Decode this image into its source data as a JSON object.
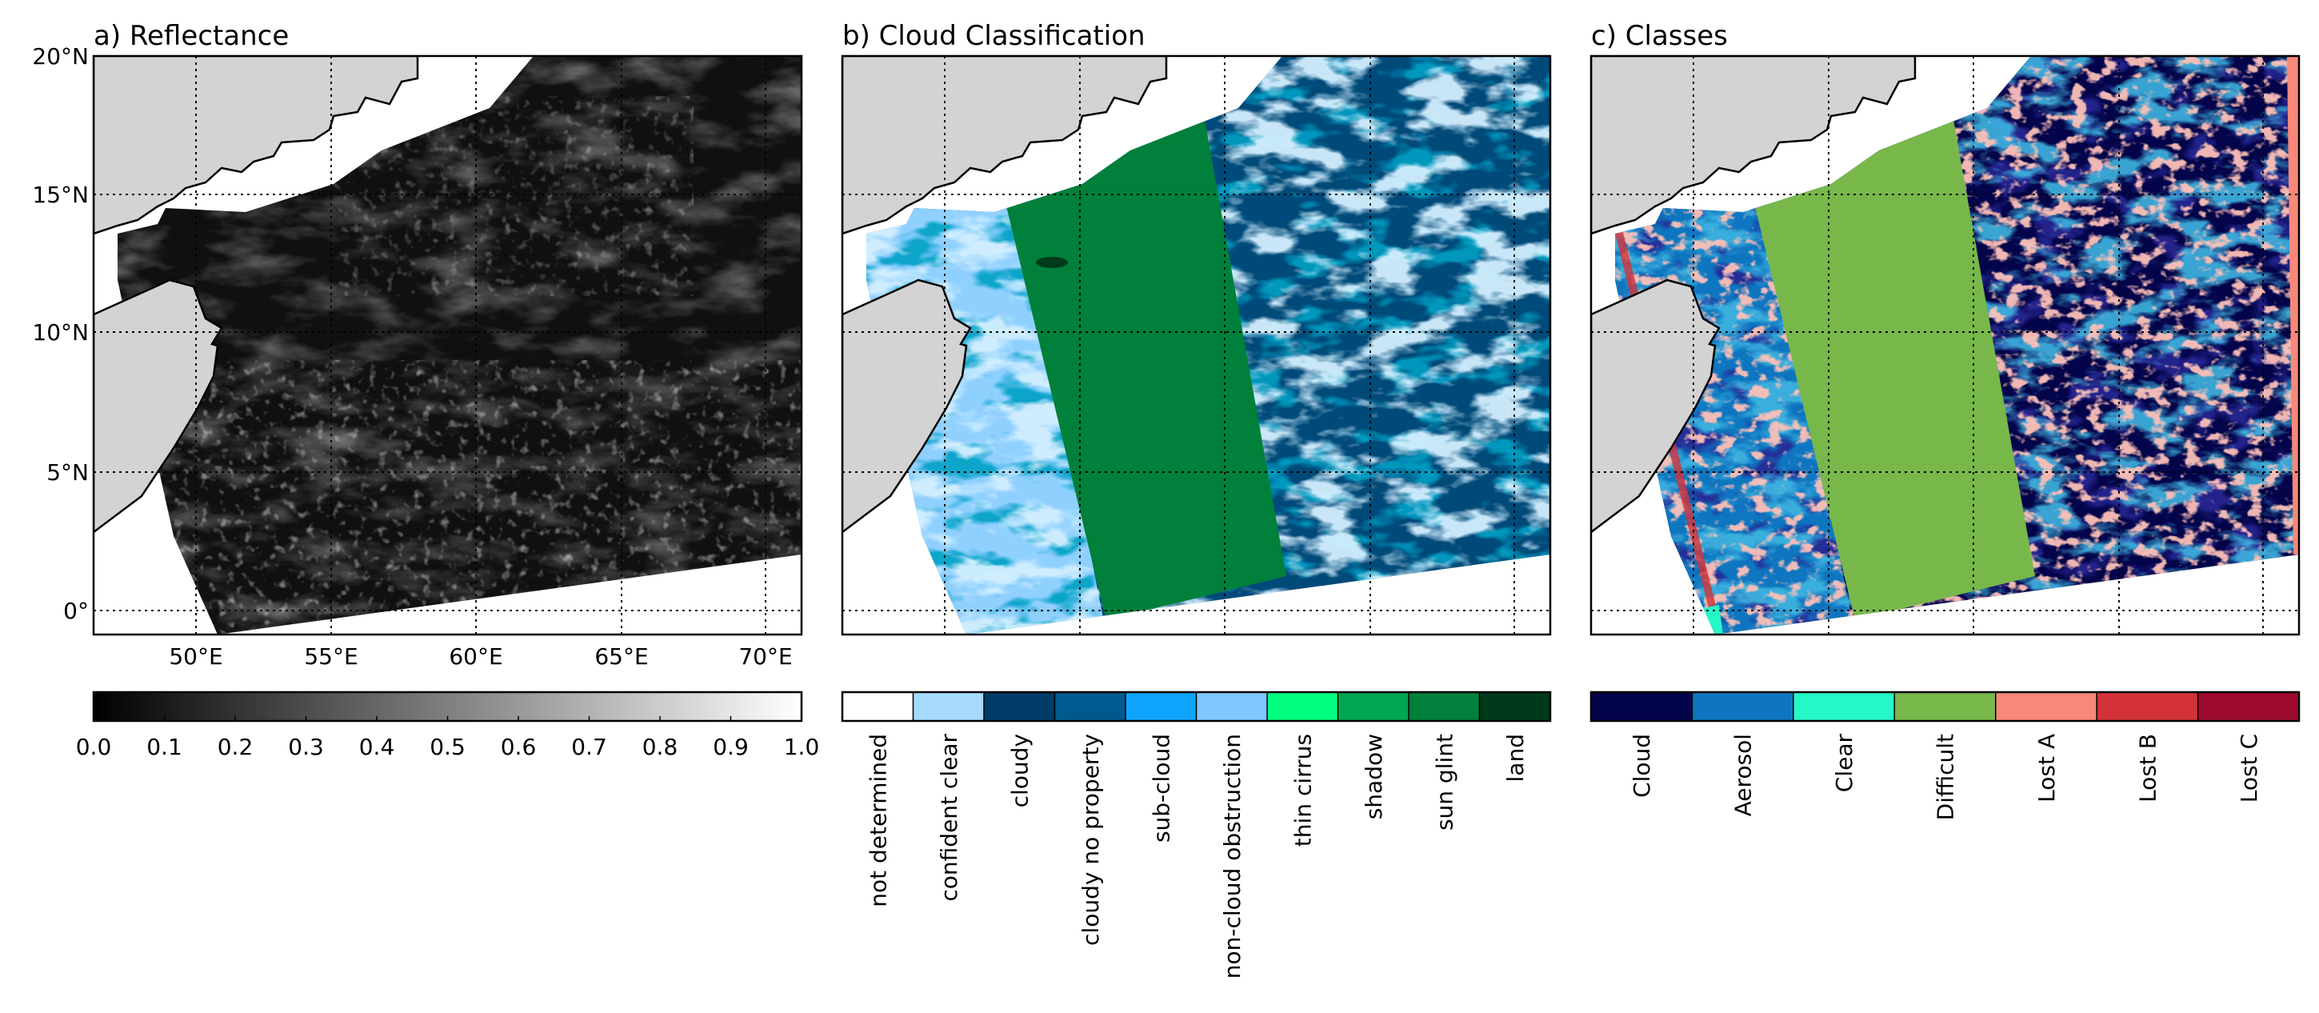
{
  "panels": [
    {
      "title": "a) Reflectance",
      "colorbar": {
        "type": "continuous",
        "tick_values": [
          "0.0",
          "0.1",
          "0.2",
          "0.3",
          "0.4",
          "0.5",
          "0.6",
          "0.7",
          "0.8",
          "0.9",
          "1.0"
        ]
      }
    },
    {
      "title": "b) Cloud Classification",
      "colorbar": {
        "type": "categorical",
        "classes": [
          {
            "label": "not determined",
            "color": "#ffffff"
          },
          {
            "label": "confident clear",
            "color": "#a6dbff"
          },
          {
            "label": "cloudy",
            "color": "#003c69"
          },
          {
            "label": "cloudy no property",
            "color": "#005a8f"
          },
          {
            "label": "sub-cloud",
            "color": "#0ea5ff"
          },
          {
            "label": "non-cloud obstruction",
            "color": "#7ec8ff"
          },
          {
            "label": "thin cirrus",
            "color": "#00ff7f"
          },
          {
            "label": "shadow",
            "color": "#00a651"
          },
          {
            "label": "sun glint",
            "color": "#00803a"
          },
          {
            "label": "land",
            "color": "#003a1c"
          }
        ]
      }
    },
    {
      "title": "c) Classes",
      "colorbar": {
        "type": "categorical",
        "classes": [
          {
            "label": "Cloud",
            "color": "#04044a"
          },
          {
            "label": "Aerosol",
            "color": "#0e76c0"
          },
          {
            "label": "Clear",
            "color": "#26f7c7"
          },
          {
            "label": "Difficult",
            "color": "#78b84b"
          },
          {
            "label": "Lost A",
            "color": "#f7887a"
          },
          {
            "label": "Lost B",
            "color": "#d23238"
          },
          {
            "label": "Lost C",
            "color": "#9e0a2e"
          }
        ]
      }
    }
  ],
  "map": {
    "lon_labels": [
      "50°E",
      "55°E",
      "60°E",
      "65°E",
      "70°E"
    ],
    "lat_labels": [
      "20°N",
      "15°N",
      "10°N",
      "5°N",
      "0°"
    ],
    "land_color": "#d3d3d3"
  }
}
